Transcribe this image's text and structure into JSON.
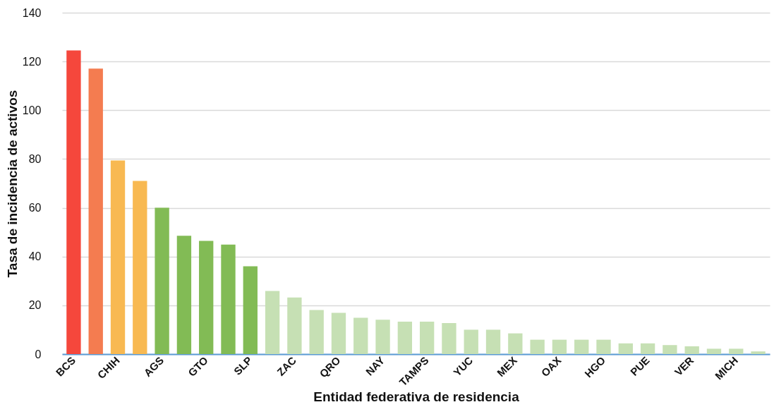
{
  "chart_data": {
    "type": "bar",
    "xlabel": "Entidad federativa de residencia",
    "ylabel": "Tasa de incidencia de activos",
    "categories": [
      "BCS",
      null,
      "CHIH",
      null,
      "AGS",
      null,
      "GTO",
      null,
      "SLP",
      null,
      "ZAC",
      null,
      "QRO",
      null,
      "NAY",
      null,
      "TAMPS",
      null,
      "YUC",
      null,
      "MEX",
      null,
      "OAX",
      null,
      "HGO",
      null,
      "PUE",
      null,
      "VER",
      null,
      "MICH",
      null
    ],
    "values": [
      124.5,
      117.1,
      79.4,
      71.0,
      60.0,
      48.5,
      46.4,
      44.9,
      36.0,
      25.9,
      23.2,
      18.1,
      16.9,
      14.9,
      14.1,
      13.3,
      13.3,
      12.7,
      10.0,
      10.0,
      8.5,
      5.9,
      5.9,
      5.9,
      5.9,
      4.4,
      4.4,
      3.7,
      3.2,
      2.2,
      2.2,
      1.1
    ],
    "colors": [
      "#f5473c",
      "#f47c50",
      "#f8b952",
      "#f8b952",
      "#82bb55",
      "#82bb55",
      "#82bb55",
      "#82bb55",
      "#82bb55",
      "#c6e0b4",
      "#c6e0b4",
      "#c6e0b4",
      "#c6e0b4",
      "#c6e0b4",
      "#c6e0b4",
      "#c6e0b4",
      "#c6e0b4",
      "#c6e0b4",
      "#c6e0b4",
      "#c6e0b4",
      "#c6e0b4",
      "#c6e0b4",
      "#c6e0b4",
      "#c6e0b4",
      "#c6e0b4",
      "#c6e0b4",
      "#c6e0b4",
      "#c6e0b4",
      "#c6e0b4",
      "#c6e0b4",
      "#c6e0b4",
      "#c6e0b4"
    ],
    "ylim": [
      0,
      140
    ],
    "yticks": [
      0,
      20,
      40,
      60,
      80,
      100,
      120,
      140
    ],
    "grid": "y"
  }
}
